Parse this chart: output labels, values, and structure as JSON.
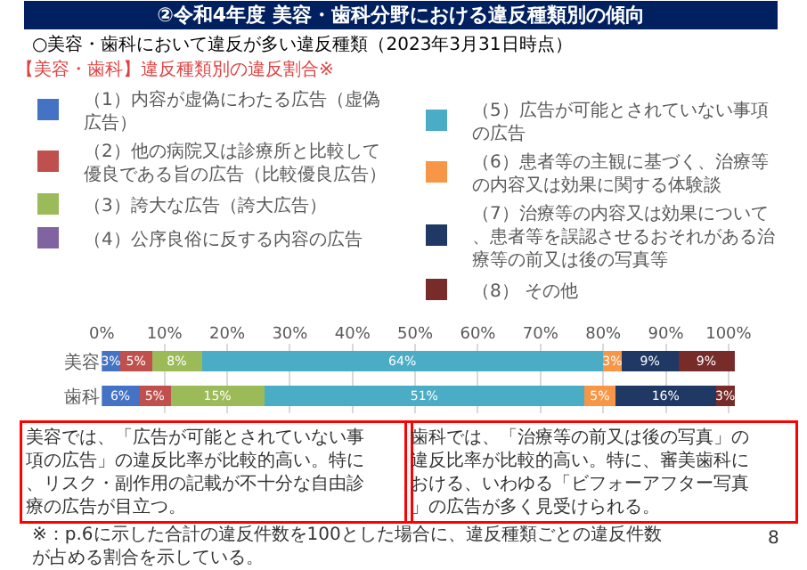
{
  "chart_data": {
    "type": "bar",
    "orientation": "horizontal",
    "stacked": true,
    "title": "②令和4年度 美容・歯科分野における違反種類別の傾向",
    "subtitle": "○美容・歯科において違反が多い違反種類（2023年3月31日時点）",
    "legend_title": "【美容・歯科】違反種類別の違反割合※",
    "categories": [
      "美容",
      "歯科"
    ],
    "series": [
      {
        "name": "（1）内容が虚偽にわたる広告（虚偽広告）",
        "color": "#4472c4",
        "values": [
          3,
          6
        ],
        "value_labels": [
          "3%",
          "6%"
        ]
      },
      {
        "name": "（2）他の病院又は診療所と比較して優良である旨の広告（比較優良広告）",
        "color": "#c0504d",
        "values": [
          5,
          5
        ],
        "value_labels": [
          "5%",
          "5%"
        ]
      },
      {
        "name": "（3）誇大な広告（誇大広告）",
        "color": "#9bbb59",
        "values": [
          8,
          15
        ],
        "value_labels": [
          "8%",
          "15%"
        ]
      },
      {
        "name": "（4）公序良俗に反する内容の広告",
        "color": "#8064a2",
        "values": [
          null,
          null
        ]
      },
      {
        "name": "（5）広告が可能とされていない事項の広告",
        "color": "#4bacc6",
        "values": [
          64,
          51
        ],
        "value_labels": [
          "64%",
          "51%"
        ]
      },
      {
        "name": "（6）患者等の主観に基づく、治療等の内容又は効果に関する体験談",
        "color": "#f79646",
        "values": [
          3,
          5
        ],
        "value_labels": [
          "3%",
          "5%"
        ]
      },
      {
        "name": "（7）治療等の内容又は効果について、患者等を誤認させるおそれがある治療等の前又は後の写真等",
        "color": "#1f3864",
        "values": [
          9,
          16
        ],
        "value_labels": [
          "9%",
          "16%"
        ]
      },
      {
        "name": "（8） その他",
        "color": "#772c2a",
        "values": [
          9,
          3
        ],
        "value_labels": [
          "9%",
          "3%"
        ]
      }
    ],
    "xlim": [
      0,
      101
    ],
    "xticks": [
      {
        "value": 0,
        "label": "0%"
      },
      {
        "value": 10,
        "label": "10%"
      },
      {
        "value": 20,
        "label": "20%"
      },
      {
        "value": 30,
        "label": "30%"
      },
      {
        "value": 40,
        "label": "40%"
      },
      {
        "value": 50,
        "label": "50%"
      },
      {
        "value": 60,
        "label": "60%"
      },
      {
        "value": 70,
        "label": "70%"
      },
      {
        "value": 80,
        "label": "80%"
      },
      {
        "value": 90,
        "label": "90%"
      },
      {
        "value": 100,
        "label": "100%"
      }
    ],
    "grid": "x",
    "legend": "top",
    "annotations": [
      "美容では、「広告が可能とされていない事項の広告」の違反比率が比較的高い。特に、リスク・副作用の記載が不十分な自由診療の広告が目立つ。",
      "歯科では、「治療等の前又は後の写真」の違反比率が比較的高い。特に、審美歯科における、いわゆる「ビフォーアフター写真」の広告が多く見受けられる。",
      "※：p.6に示した合計の違反件数を100とした場合に、違反種類ごとの違反件数が占める割合を示している。",
      "8"
    ]
  }
}
